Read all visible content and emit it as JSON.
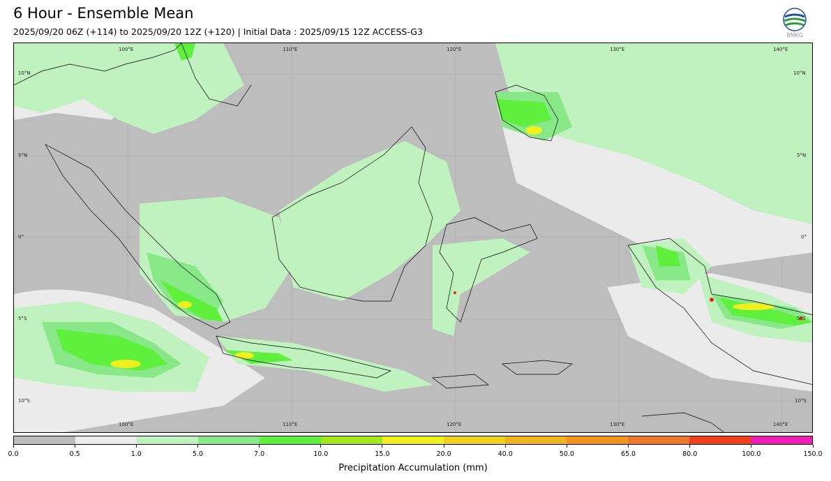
{
  "header": {
    "title": "6 Hour - Ensemble Mean",
    "subtitle": "2025/09/20 06Z (+114) to 2025/09/20 12Z (+120) | Initial Data : 2025/09/15 12Z ACCESS-G3",
    "logo_text": "BMKG"
  },
  "map": {
    "region": "Indonesia",
    "variable": "Precipitation Accumulation (mm)",
    "lon_labels": [
      "100°E",
      "110°E",
      "120°E",
      "130°E",
      "140°E"
    ],
    "lat_labels": [
      "10°N",
      "5°N",
      "0°",
      "5°S",
      "10°S"
    ]
  },
  "legend": {
    "label": "Precipitation Accumulation (mm)",
    "ticks": [
      "0.0",
      "0.5",
      "1.0",
      "5.0",
      "7.0",
      "10.0",
      "15.0",
      "20.0",
      "40.0",
      "50.0",
      "65.0",
      "80.0",
      "100.0",
      "150.0"
    ],
    "colors": [
      "#bdbdbd",
      "#ebebeb",
      "#bff2bf",
      "#88e888",
      "#5ef03c",
      "#a6e61e",
      "#f0f01e",
      "#f0d21e",
      "#f0b41e",
      "#f0961e",
      "#f0782d",
      "#f0401e",
      "#f01eb4"
    ]
  },
  "colors": {
    "ocean_dry": "#bdbdbd",
    "light_rain": "#ebebeb",
    "rain_1": "#bff2bf",
    "rain_5": "#88e888",
    "rain_7": "#5ef03c",
    "rain_10": "#a6e61e",
    "rain_15": "#f0f01e",
    "heavy": "#f01e1e"
  }
}
